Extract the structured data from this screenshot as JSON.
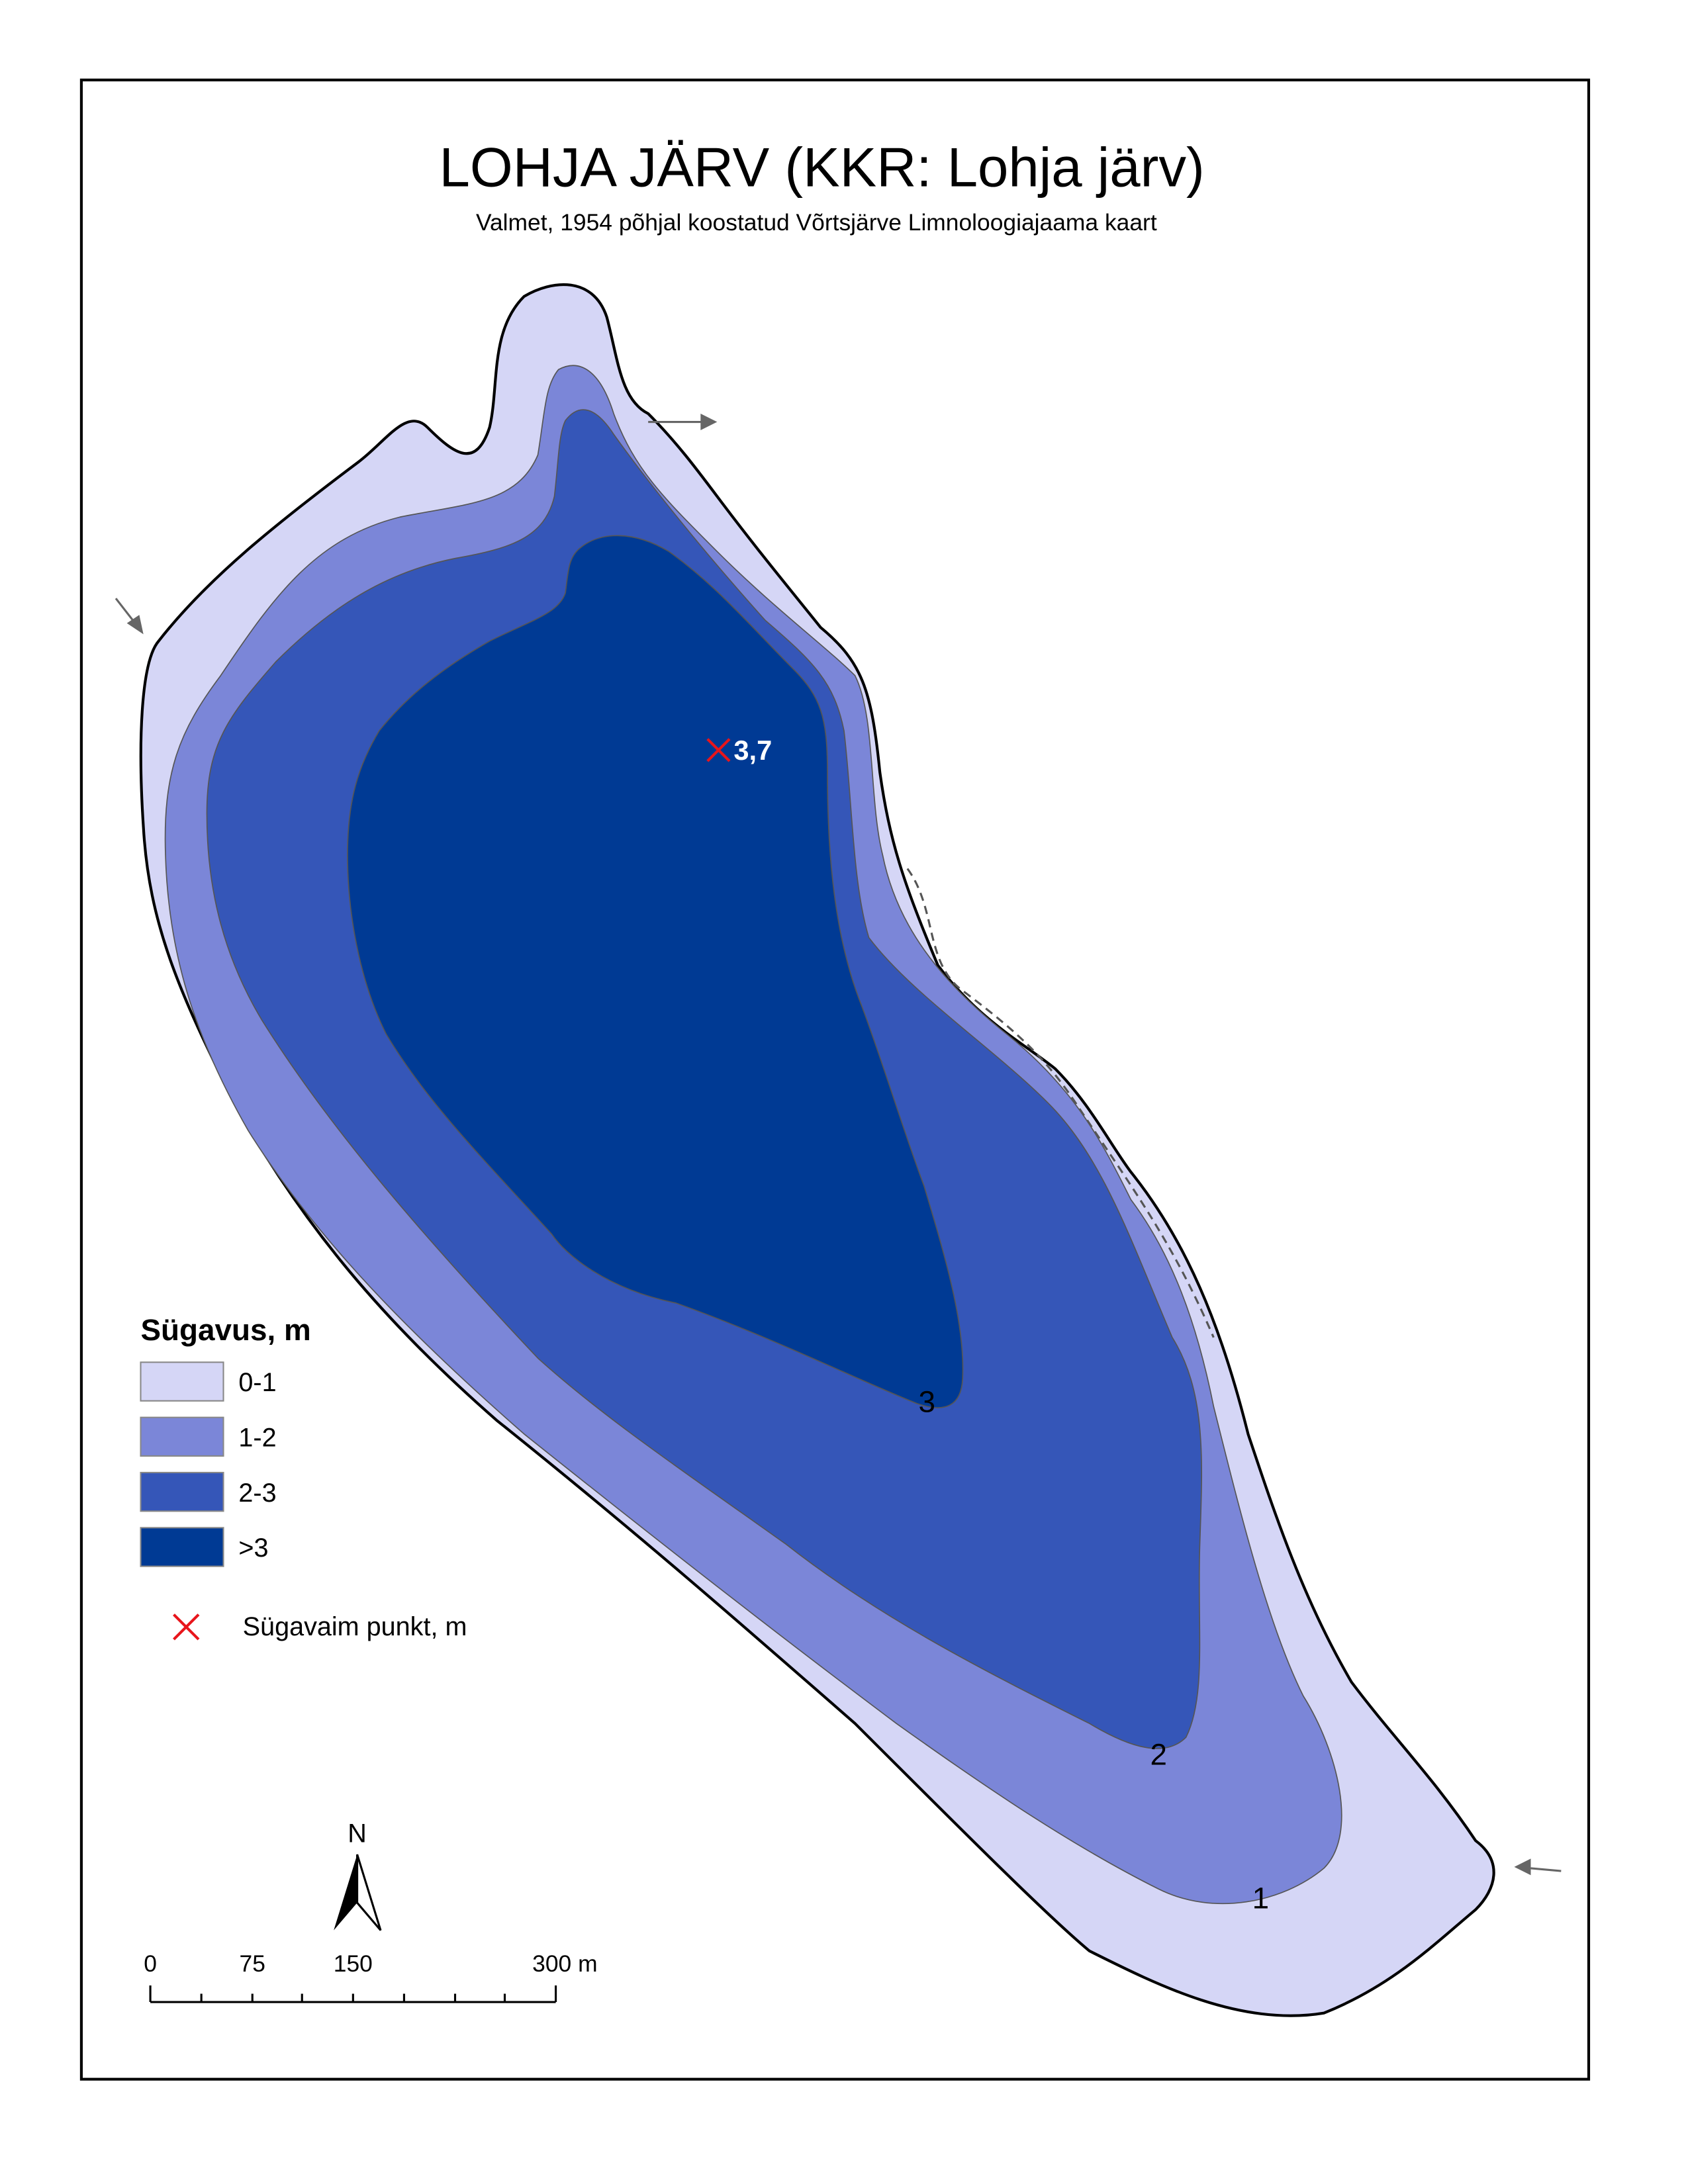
{
  "header": {
    "title": "LOHJA JÄRV (KKR: Lohja järv)",
    "subtitle": "Valmet, 1954 põhjal koostatud Võrtsjärve Limnoloogiajaama kaart"
  },
  "map": {
    "deepest_point_label": "3,7",
    "contour_labels": [
      "3",
      "2",
      "1"
    ]
  },
  "legend": {
    "title": "Sügavus, m",
    "items": [
      "0-1",
      "1-2",
      "2-3",
      ">3"
    ],
    "deepest_point": "Sügavaim punkt, m"
  },
  "north_arrow": "N",
  "scale_bar": {
    "labels": [
      "0",
      "75",
      "150",
      "300 m"
    ]
  }
}
